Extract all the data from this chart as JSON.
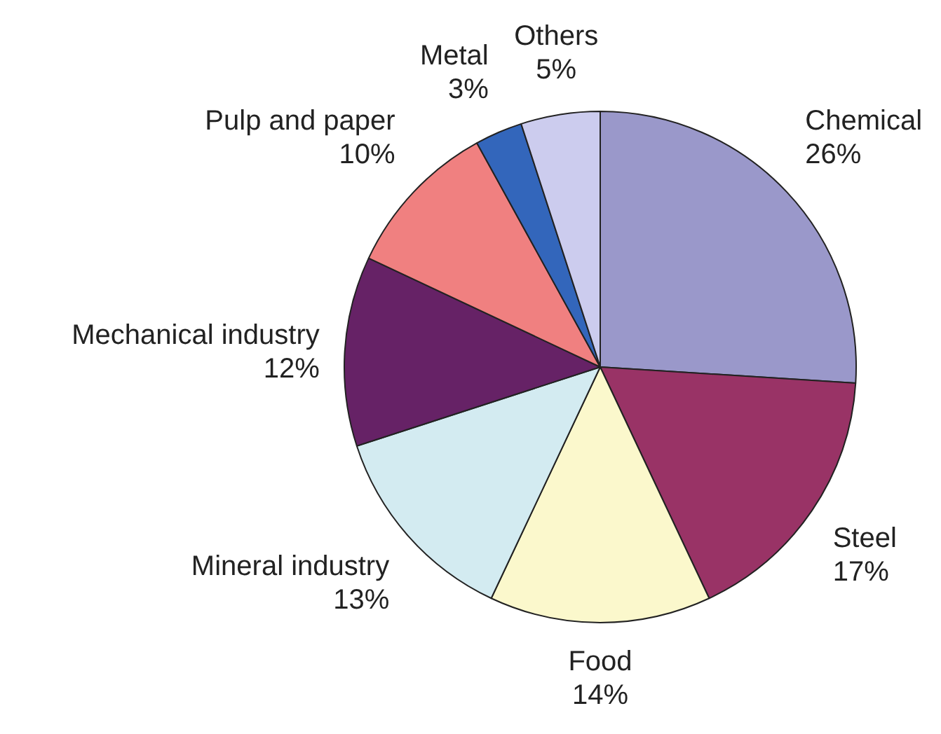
{
  "chart_data": {
    "type": "pie",
    "categories": [
      "Chemical",
      "Steel",
      "Food",
      "Mineral industry",
      "Mechanical industry",
      "Pulp and paper",
      "Metal",
      "Others"
    ],
    "values": [
      26,
      17,
      14,
      13,
      12,
      10,
      3,
      5
    ],
    "colors": [
      "#9a98ca",
      "#993366",
      "#fbf8cc",
      "#d3ebf1",
      "#662266",
      "#f08080",
      "#3366bb",
      "#ccccee"
    ],
    "value_labels": [
      "26%",
      "17%",
      "14%",
      "13%",
      "12%",
      "10%",
      "3%",
      "5%"
    ],
    "legend": false
  }
}
